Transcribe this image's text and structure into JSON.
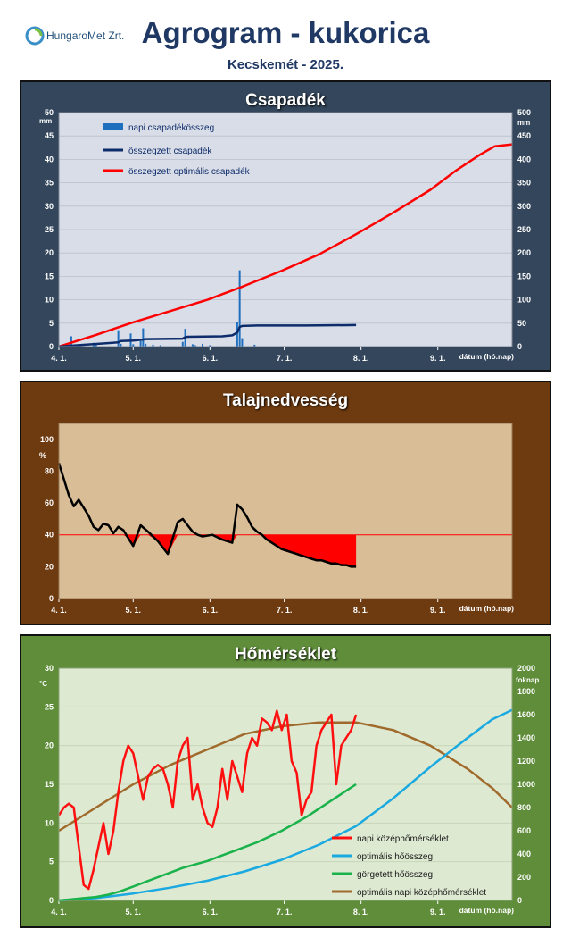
{
  "header": {
    "logo_text": "HungaroMet Zrt.",
    "title": "Agrogram - kukorica",
    "subtitle": "Kecskemét - 2025."
  },
  "colors": {
    "panel1_bg": "#33465b",
    "panel2_bg": "#6e3a0f",
    "panel3_bg": "#5f8d3a",
    "plot1_bg": "#d9dde7",
    "plot2_bg": "#d8bd96",
    "plot3_bg": "#dde9d1"
  },
  "x_ticks": [
    "4. 1.",
    "5. 1.",
    "6. 1.",
    "7. 1.",
    "8. 1.",
    "9. 1."
  ],
  "x_axis_label": "dátum (hó.nap)",
  "precip": {
    "title": "Csapadék",
    "left_unit": "mm",
    "right_unit": "mm",
    "left_ticks": [
      "0",
      "5",
      "10",
      "15",
      "20",
      "25",
      "30",
      "35",
      "40",
      "45",
      "50"
    ],
    "right_ticks": [
      "0",
      "50",
      "100",
      "150",
      "200",
      "250",
      "300",
      "350",
      "400",
      "450",
      "500"
    ],
    "legend": [
      "napi csapadékösszeg",
      "összegzett csapadék",
      "összegzett optimális csapadék"
    ]
  },
  "soil": {
    "title": "Talajnedvesség",
    "unit": "%",
    "y_ticks": [
      "0",
      "20",
      "40",
      "60",
      "80",
      "100"
    ]
  },
  "temp": {
    "title": "Hőmérséklet",
    "left_unit": "°C",
    "right_unit": "foknap",
    "left_ticks": [
      "0",
      "5",
      "10",
      "15",
      "20",
      "25",
      "30"
    ],
    "right_ticks": [
      "0",
      "200",
      "400",
      "600",
      "800",
      "1000",
      "1200",
      "1400",
      "1600",
      "1800",
      "2000"
    ],
    "legend": [
      "napi középhőmérséklet",
      "optimális hőösszeg",
      "görgetett hőösszeg",
      "optimális napi középhőmérséklet"
    ]
  },
  "chart_data": [
    {
      "type": "bar",
      "title": "Csapadék",
      "xlabel": "dátum (hó.nap)",
      "ylabel": "mm",
      "ylim": [
        0,
        50
      ],
      "y2lim": [
        0,
        500
      ],
      "xlim_days": [
        0,
        183
      ],
      "series": [
        {
          "name": "napi csapadékösszeg",
          "axis": "left",
          "kind": "bar",
          "x": [
            5,
            14,
            15,
            24,
            25,
            29,
            30,
            33,
            34,
            35,
            38,
            41,
            50,
            51,
            54,
            55,
            58,
            61,
            72,
            73,
            74,
            79
          ],
          "y": [
            2.2,
            0.8,
            0.4,
            3.5,
            0.6,
            2.8,
            0.5,
            1.2,
            3.9,
            0.6,
            0.4,
            0.3,
            1.0,
            3.8,
            0.5,
            0.3,
            0.6,
            0.3,
            5.2,
            16.3,
            1.8,
            0.4
          ]
        },
        {
          "name": "összegzett csapadék",
          "axis": "right",
          "kind": "line",
          "x": [
            0,
            5,
            6,
            24,
            25,
            30,
            34,
            35,
            50,
            51,
            52,
            66,
            70,
            72,
            73,
            74,
            80,
            100,
            120
          ],
          "y": [
            0,
            2,
            2.5,
            9,
            12,
            13,
            15,
            16,
            17,
            20,
            21,
            22,
            24,
            30,
            42,
            44,
            45,
            45,
            46
          ]
        },
        {
          "name": "összegzett optimális csapadék",
          "axis": "right",
          "kind": "line",
          "x": [
            0,
            15,
            30,
            45,
            60,
            75,
            90,
            105,
            120,
            135,
            150,
            160,
            170,
            176,
            183
          ],
          "y": [
            0,
            25,
            52,
            76,
            100,
            130,
            162,
            197,
            240,
            286,
            335,
            375,
            410,
            428,
            432
          ]
        }
      ]
    },
    {
      "type": "area",
      "title": "Talajnedvesség",
      "xlabel": "dátum (hó.nap)",
      "ylabel": "%",
      "ylim": [
        0,
        100
      ],
      "xlim_days": [
        0,
        183
      ],
      "threshold": 40,
      "series": [
        {
          "name": "talajnedvesség",
          "x": [
            0,
            2,
            4,
            6,
            8,
            10,
            12,
            14,
            16,
            18,
            20,
            22,
            24,
            26,
            28,
            30,
            33,
            36,
            40,
            44,
            48,
            50,
            52,
            54,
            56,
            58,
            62,
            66,
            70,
            72,
            74,
            76,
            78,
            80,
            82,
            84,
            86,
            88,
            90,
            92,
            94,
            96,
            98,
            100,
            102,
            104,
            106,
            108,
            110,
            112,
            114,
            116,
            118,
            120
          ],
          "y": [
            85,
            75,
            65,
            58,
            62,
            57,
            52,
            45,
            43,
            47,
            46,
            41,
            45,
            43,
            38,
            33,
            46,
            42,
            36,
            28,
            48,
            50,
            46,
            42,
            40,
            39,
            40,
            37,
            35,
            59,
            56,
            51,
            45,
            42,
            40,
            37,
            35,
            33,
            31,
            30,
            29,
            28,
            27,
            26,
            25,
            24,
            24,
            23,
            22,
            22,
            21,
            21,
            20,
            20
          ]
        }
      ]
    },
    {
      "type": "line",
      "title": "Hőmérséklet",
      "xlabel": "dátum (hó.nap)",
      "ylabel": "°C",
      "ylim": [
        0,
        30
      ],
      "y2lim": [
        0,
        2000
      ],
      "xlim_days": [
        0,
        183
      ],
      "series": [
        {
          "name": "napi középhőmérséklet",
          "axis": "left",
          "x": [
            0,
            2,
            4,
            6,
            8,
            10,
            12,
            14,
            16,
            18,
            20,
            22,
            24,
            26,
            28,
            30,
            32,
            34,
            36,
            38,
            40,
            42,
            44,
            46,
            48,
            50,
            52,
            54,
            56,
            58,
            60,
            62,
            64,
            66,
            68,
            70,
            72,
            74,
            76,
            78,
            80,
            82,
            84,
            86,
            88,
            90,
            92,
            94,
            96,
            98,
            100,
            102,
            104,
            106,
            108,
            110,
            112,
            114,
            116,
            118,
            120
          ],
          "y": [
            11,
            12,
            12.5,
            12,
            7,
            2,
            1.5,
            4,
            7,
            10,
            6,
            9,
            14,
            18,
            20,
            19,
            16,
            13,
            16,
            17,
            17.5,
            17,
            15,
            12,
            18,
            20,
            21,
            13,
            15,
            12,
            10,
            9.5,
            12,
            17,
            13,
            18,
            16,
            14,
            19,
            21,
            20,
            23.5,
            23,
            22,
            24.5,
            22,
            24,
            18,
            16.5,
            11,
            13,
            14,
            20,
            22,
            23,
            24,
            15,
            20,
            21,
            22,
            24
          ]
        },
        {
          "name": "optimális hőösszeg",
          "axis": "right",
          "x": [
            0,
            15,
            30,
            45,
            60,
            75,
            90,
            105,
            120,
            135,
            150,
            165,
            175,
            183
          ],
          "y": [
            0,
            20,
            60,
            110,
            170,
            250,
            350,
            480,
            640,
            880,
            1150,
            1400,
            1560,
            1640
          ]
        },
        {
          "name": "görgetett hőösszeg",
          "axis": "right",
          "x": [
            0,
            5,
            10,
            15,
            20,
            25,
            30,
            35,
            40,
            45,
            50,
            55,
            60,
            65,
            70,
            75,
            80,
            85,
            90,
            95,
            100,
            105,
            110,
            115,
            120
          ],
          "y": [
            0,
            10,
            20,
            30,
            50,
            80,
            120,
            160,
            200,
            240,
            280,
            310,
            340,
            380,
            420,
            460,
            500,
            550,
            600,
            660,
            720,
            790,
            860,
            930,
            1000
          ]
        },
        {
          "name": "optimális napi középhőmérséklet",
          "axis": "left",
          "x": [
            0,
            15,
            30,
            45,
            60,
            75,
            90,
            105,
            120,
            135,
            150,
            165,
            175,
            183
          ],
          "y": [
            9,
            12,
            15,
            17.5,
            19.5,
            21.5,
            22.5,
            23,
            23,
            22,
            20,
            17,
            14.5,
            12
          ]
        }
      ]
    }
  ]
}
